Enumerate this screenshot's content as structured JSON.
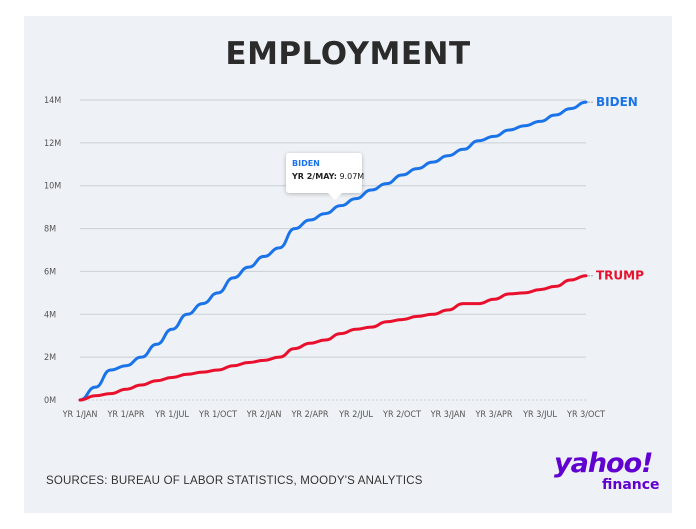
{
  "chart_data": {
    "type": "line",
    "title": "EMPLOYMENT",
    "xlabel": "",
    "ylabel": "",
    "ylim": [
      0,
      14
    ],
    "y_unit_suffix": "M",
    "y_ticks": [
      "0M",
      "2M",
      "4M",
      "6M",
      "8M",
      "10M",
      "12M",
      "14M"
    ],
    "x_ticks": [
      "YR 1/JAN",
      "YR 1/APR",
      "YR 1/JUL",
      "YR 1/OCT",
      "YR 2/JAN",
      "YR 2/APR",
      "YR 2/JUL",
      "YR 2/OCT",
      "YR 3/JAN",
      "YR 3/APR",
      "YR 3/JUL",
      "YR 3/OCT"
    ],
    "x_month_count": 34,
    "grid": true,
    "series": [
      {
        "name": "BIDEN",
        "color": "#1a73e8",
        "values": [
          0.0,
          0.6,
          1.4,
          1.6,
          2.0,
          2.6,
          3.3,
          4.0,
          4.5,
          5.0,
          5.7,
          6.2,
          6.7,
          7.1,
          8.0,
          8.4,
          8.7,
          9.07,
          9.4,
          9.8,
          10.1,
          10.5,
          10.8,
          11.1,
          11.4,
          11.7,
          12.1,
          12.3,
          12.6,
          12.8,
          13.0,
          13.3,
          13.6,
          13.9
        ]
      },
      {
        "name": "TRUMP",
        "color": "#e8102c",
        "values": [
          0.0,
          0.2,
          0.3,
          0.5,
          0.7,
          0.9,
          1.05,
          1.2,
          1.3,
          1.4,
          1.6,
          1.75,
          1.85,
          2.0,
          2.4,
          2.65,
          2.8,
          3.1,
          3.3,
          3.4,
          3.65,
          3.75,
          3.9,
          4.0,
          4.2,
          4.5,
          4.5,
          4.7,
          4.95,
          5.0,
          5.15,
          5.3,
          5.6,
          5.8
        ]
      }
    ],
    "tooltip": {
      "series": "BIDEN",
      "point_label": "YR 2/MAY:",
      "value_text": "9.07M",
      "month_index": 17
    }
  },
  "source_text": "SOURCES: BUREAU OF LABOR STATISTICS, MOODY'S ANALYTICS",
  "logo": {
    "yahoo": "yahoo!",
    "finance": "finance",
    "color": "#6001d2"
  }
}
